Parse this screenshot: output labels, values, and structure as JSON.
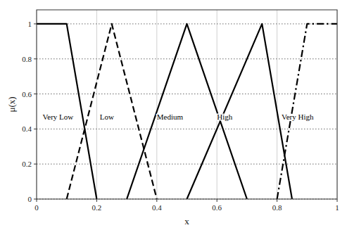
{
  "chart_data": {
    "type": "line",
    "xlabel": "x",
    "ylabel": "μ(x)",
    "xlim": [
      0,
      1
    ],
    "ylim": [
      0,
      1.08
    ],
    "xticks": [
      0,
      0.2,
      0.4,
      0.6,
      0.8,
      1
    ],
    "yticks": [
      0,
      0.2,
      0.4,
      0.6,
      0.8,
      1
    ],
    "grid": true,
    "series": [
      {
        "x": [
          0,
          0.1,
          0.2
        ],
        "values": [
          1,
          1,
          0
        ],
        "line_style": "solid",
        "color": "black"
      },
      {
        "x": [
          0.1,
          0.25,
          0.4
        ],
        "values": [
          0,
          1,
          0
        ],
        "line_style": "dashed",
        "color": "black"
      },
      {
        "x": [
          0.3,
          0.5,
          0.7
        ],
        "values": [
          0,
          1,
          0
        ],
        "line_style": "solid",
        "color": "black"
      },
      {
        "x": [
          0.5,
          0.75,
          0.85
        ],
        "values": [
          0,
          1,
          0
        ],
        "line_style": "solid",
        "color": "black"
      },
      {
        "x": [
          0.8,
          0.9,
          1.0
        ],
        "values": [
          0,
          1,
          1
        ],
        "line_style": "dashdot",
        "color": "black"
      }
    ],
    "annotations": [
      {
        "text": "Very Low",
        "x": 0.02,
        "y": 0.47
      },
      {
        "text": "Low",
        "x": 0.21,
        "y": 0.47
      },
      {
        "text": "Medium",
        "x": 0.4,
        "y": 0.47
      },
      {
        "text": "High",
        "x": 0.6,
        "y": 0.47
      },
      {
        "text": "Very High",
        "x": 0.815,
        "y": 0.47
      }
    ]
  }
}
